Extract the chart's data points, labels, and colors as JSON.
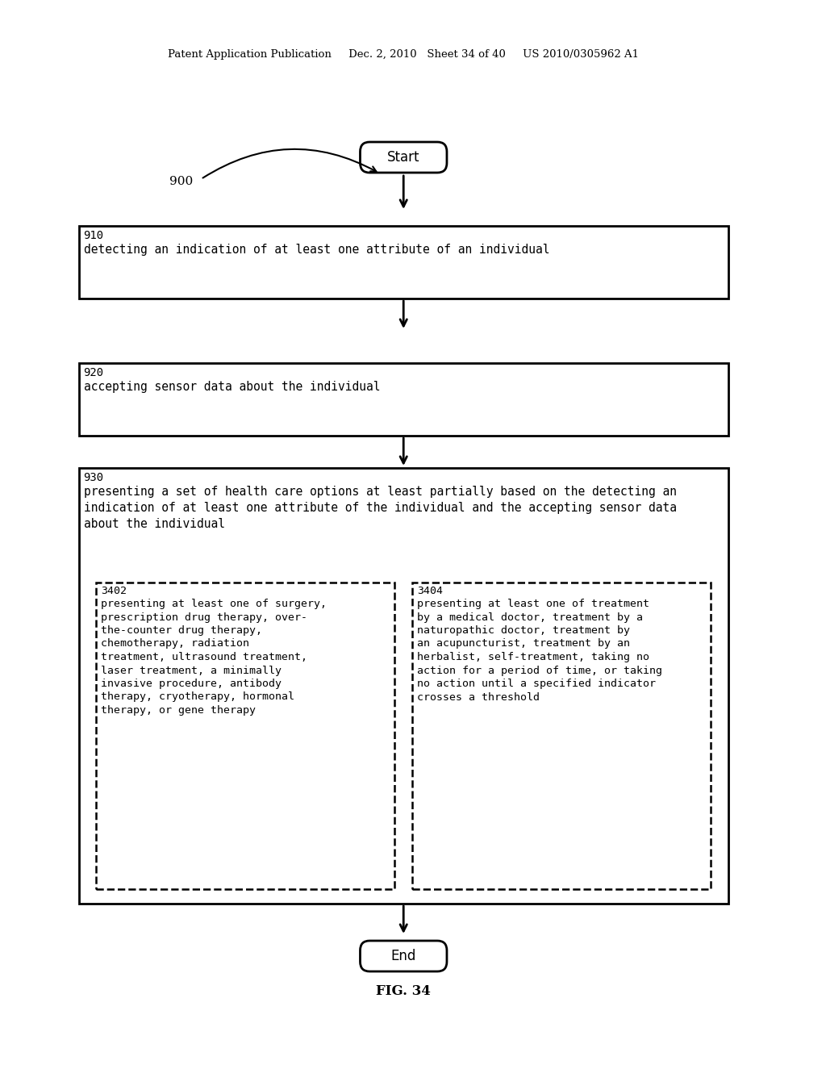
{
  "bg_color": "#ffffff",
  "header_text": "Patent Application Publication     Dec. 2, 2010   Sheet 34 of 40     US 2010/0305962 A1",
  "fig_label": "FIG. 34",
  "label_900": "900",
  "start_label": "Start",
  "end_label": "End",
  "box910_label": "910",
  "box910_text": "detecting an indication of at least one attribute of an individual",
  "box920_label": "920",
  "box920_text": "accepting sensor data about the individual",
  "box930_label": "930",
  "box930_text": "presenting a set of health care options at least partially based on the detecting an\nindication of at least one attribute of the individual and the accepting sensor data\nabout the individual",
  "box3402_label": "3402",
  "box3402_text": "presenting at least one of surgery,\nprescription drug therapy, over-\nthe-counter drug therapy,\nchemotherapy, radiation\ntreatment, ultrasound treatment,\nlaser treatment, a minimally\ninvasive procedure, antibody\ntherapy, cryotherapy, hormonal\ntherapy, or gene therapy",
  "box3404_label": "3404",
  "box3404_text": "presenting at least one of treatment\nby a medical doctor, treatment by a\nnaturopathic doctor, treatment by\nan acupuncturist, treatment by an\nherbalist, self-treatment, taking no\naction for a period of time, or taking\nno action until a specified indicator\ncrosses a threshold"
}
